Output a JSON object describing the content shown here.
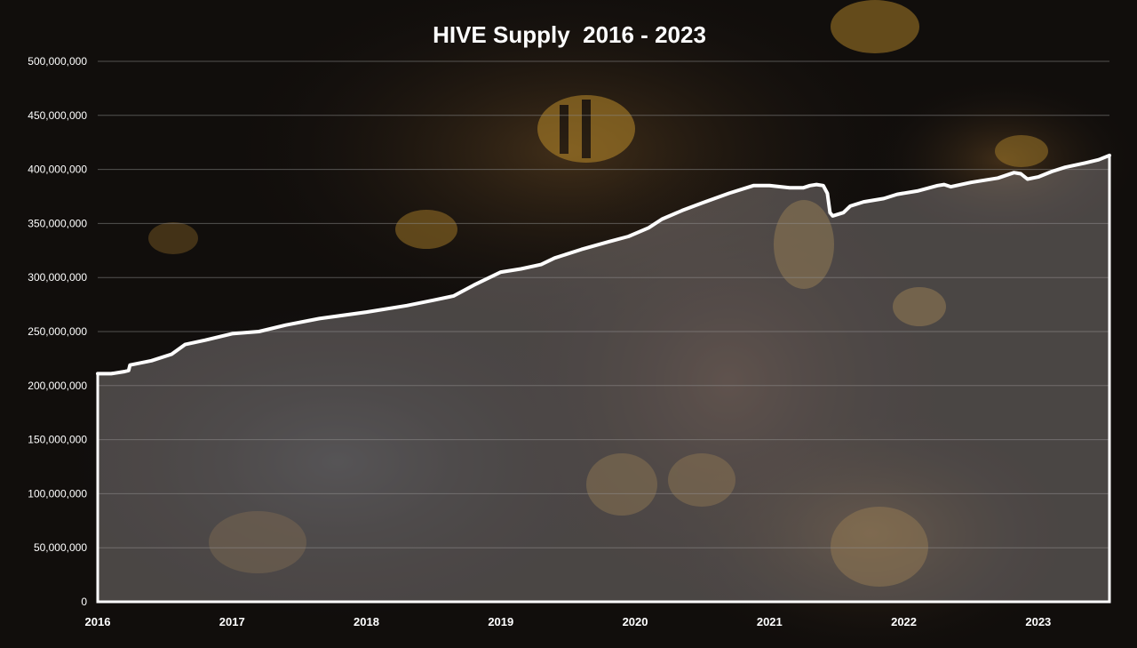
{
  "chart_data": {
    "type": "area",
    "title": "HIVE Supply  2016 - 2023",
    "xlabel": "",
    "ylabel": "",
    "x_ticks": [
      "2016",
      "2017",
      "2018",
      "2019",
      "2020",
      "2021",
      "2022",
      "2023"
    ],
    "y_ticks": [
      "0",
      "50,000,000",
      "100,000,000",
      "150,000,000",
      "200,000,000",
      "250,000,000",
      "300,000,000",
      "350,000,000",
      "400,000,000",
      "450,000,000",
      "500,000,000"
    ],
    "xlim": [
      2016.0,
      2023.53
    ],
    "ylim": [
      0,
      500000000
    ],
    "grid": true,
    "legend": "none",
    "line_color": "#ffffff",
    "fill_color": "#9c9494",
    "series": [
      {
        "x": [
          2016.0,
          2016.1,
          2016.2,
          2016.23,
          2016.24,
          2016.4,
          2016.55,
          2016.65,
          2016.8,
          2017.0,
          2017.2,
          2017.4,
          2017.65,
          2018.0,
          2018.3,
          2018.5,
          2018.65,
          2018.8,
          2019.0,
          2019.15,
          2019.3,
          2019.4,
          2019.6,
          2019.8,
          2019.95,
          2020.1,
          2020.2,
          2020.35,
          2020.5,
          2020.7,
          2020.88,
          2021.0,
          2021.15,
          2021.25,
          2021.3,
          2021.35,
          2021.4,
          2021.43,
          2021.45,
          2021.47,
          2021.55,
          2021.6,
          2021.7,
          2021.85,
          2021.95,
          2022.1,
          2022.25,
          2022.3,
          2022.35,
          2022.5,
          2022.7,
          2022.82,
          2022.87,
          2022.92,
          2023.0,
          2023.1,
          2023.2,
          2023.35,
          2023.45,
          2023.53
        ],
        "y": [
          211000000,
          211000000,
          213000000,
          214000000,
          219000000,
          223000000,
          229000000,
          238000000,
          242000000,
          248000000,
          250000000,
          256000000,
          262000000,
          268000000,
          274000000,
          279000000,
          283000000,
          293000000,
          305000000,
          308000000,
          312000000,
          318000000,
          326000000,
          333000000,
          338000000,
          346000000,
          354000000,
          362000000,
          369000000,
          378000000,
          385000000,
          385000000,
          383000000,
          383000000,
          385000000,
          386000000,
          385000000,
          378000000,
          360000000,
          357000000,
          360000000,
          366000000,
          370000000,
          373000000,
          377000000,
          380000000,
          385000000,
          386000000,
          384000000,
          388000000,
          392000000,
          397000000,
          396000000,
          391000000,
          393000000,
          398000000,
          402000000,
          406000000,
          409000000,
          413000000
        ]
      }
    ]
  }
}
